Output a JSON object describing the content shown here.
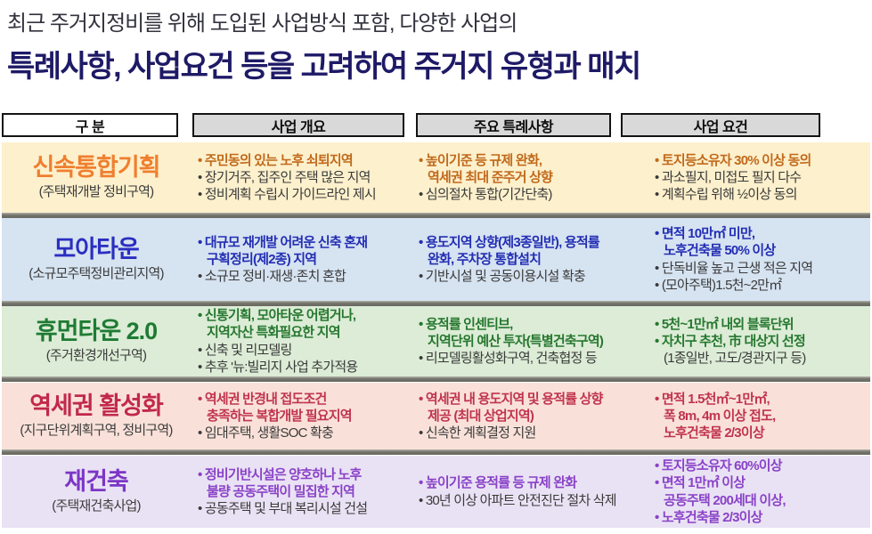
{
  "header": {
    "subtitle": "최근 주거지정비를 위해 도입된 사업방식 포함, 다양한 사업의",
    "title": "특례사항, 사업요건 등을 고려하여 주거지 유형과 매치"
  },
  "table": {
    "columns": [
      {
        "label": "구 분"
      },
      {
        "label": "사업 개요"
      },
      {
        "label": "주요 특례사항"
      },
      {
        "label": "사업 요건"
      }
    ],
    "header_fill": "#d9d9d9",
    "rows": [
      {
        "name": "신속통합기획",
        "sub": "(주택재개발 정비구역)",
        "colors": {
          "accent": "#ef7f2f",
          "bold_text": "#c06a1c",
          "bg": "#fdf0cc"
        },
        "overview": [
          {
            "text": "주민동의 있는 노후 쇠퇴지역",
            "bold": true
          },
          {
            "text": "장기거주, 집주인 주택 많은 지역",
            "bold": false
          },
          {
            "text": "정비계획 수립시 가이드라인 제시",
            "bold": false
          }
        ],
        "special": [
          {
            "text": "높이기준 등 규제 완화,\n역세권 최대 준주거 상향",
            "bold": true
          },
          {
            "text": "심의절차 통합(기간단축)",
            "bold": false
          }
        ],
        "requirements": [
          {
            "text": "토지등소유자 30% 이상 동의",
            "bold": true
          },
          {
            "text": "과소필지, 미접도 필지 다수",
            "bold": false
          },
          {
            "text": "계획수립 위해 ½이상 동의",
            "bold": false
          }
        ]
      },
      {
        "name": "모아타운",
        "sub": "(소규모주택정비관리지역)",
        "colors": {
          "accent": "#2a2ec0",
          "bold_text": "#232eb4",
          "bg": "#d6e3f1"
        },
        "overview": [
          {
            "text": "대규모 재개발 어려운 신축 혼재\n구획정리(제2종) 지역",
            "bold": true
          },
          {
            "text": "소규모 정비·재생·존치 혼합",
            "bold": false
          }
        ],
        "special": [
          {
            "text": "용도지역 상향(제3종일반), 용적률\n완화, 주차장 통합설치",
            "bold": true
          },
          {
            "text": "기반시설 및 공동이용시설 확충",
            "bold": false
          }
        ],
        "requirements": [
          {
            "text": "면적 10만㎡ 미만,\n노후건축물 50% 이상",
            "bold": true
          },
          {
            "text": "단독비율 높고 근생 적은 지역",
            "bold": false
          },
          {
            "text": "(모아주택)1.5천~2만㎡",
            "bold": false
          }
        ]
      },
      {
        "name": "휴먼타운 2.0",
        "sub": "(주거환경개선구역)",
        "colors": {
          "accent": "#1e7b33",
          "bold_text": "#26772f",
          "bg": "#dcecd6"
        },
        "overview": [
          {
            "text": "신통기획, 모아타운 어렵거나,\n지역자산 특화필요한 지역",
            "bold": true
          },
          {
            "text": "신축 및 리모델링",
            "bold": false
          },
          {
            "text": "추후 '뉴:빌리지 사업 추가적용",
            "bold": false
          }
        ],
        "special": [
          {
            "text": "용적률 인센티브,\n지역단위 예산 투자(특별건축구역)",
            "bold": true
          },
          {
            "text": "리모델링활성화구역, 건축협정 등",
            "bold": false
          }
        ],
        "requirements": [
          {
            "text": "5천~1만㎡ 내외 블록단위",
            "bold": true
          },
          {
            "text": "자치구 추천, 市 대상지 선정",
            "bold": true
          },
          {
            "text": "(1종일반, 고도/경관지구 등)",
            "bold": false,
            "marker": false
          }
        ]
      },
      {
        "name": "역세권 활성화",
        "sub": "(지구단위계획구역, 정비구역)",
        "colors": {
          "accent": "#c1294a",
          "bold_text": "#c0344f",
          "bg": "#f9e1d9"
        },
        "overview": [
          {
            "text": "역세권 반경내 접도조건\n충족하는 복합개발 필요지역",
            "bold": true
          },
          {
            "text": "임대주택, 생활SOC 확충",
            "bold": false
          }
        ],
        "special": [
          {
            "text": "역세권 내 용도지역 및 용적률 상향\n제공 (최대 상업지역)",
            "bold": true
          },
          {
            "text": "신속한 계획결정 지원",
            "bold": false
          }
        ],
        "requirements": [
          {
            "text": "면적 1.5천㎡~1만㎡,\n폭 8m, 4m 이상 접도,\n노후건축물 2/3이상",
            "bold": true
          }
        ]
      },
      {
        "name": "재건축",
        "sub": "(주택재건축사업)",
        "colors": {
          "accent": "#7c36c6",
          "bold_text": "#8a42c8",
          "bg": "#e9e2f4"
        },
        "overview": [
          {
            "text": "정비기반시설은 양호하나 노후\n불량 공동주택이 밀집한 지역",
            "bold": true
          },
          {
            "text": "공동주택 및 부대 복리시설 건설",
            "bold": false
          }
        ],
        "special": [
          {
            "text": "높이기준 용적률 등 규제 완화",
            "bold": true
          },
          {
            "text": "30년 이상 아파트 안전진단 절차 삭제",
            "bold": false
          }
        ],
        "requirements": [
          {
            "text": "토지등소유자 60%이상",
            "bold": true
          },
          {
            "text": "면적 1만㎡ 이상\n공동주택 200세대 이상,",
            "bold": true
          },
          {
            "text": "노후건축물 2/3이상",
            "bold": true
          }
        ]
      }
    ]
  }
}
